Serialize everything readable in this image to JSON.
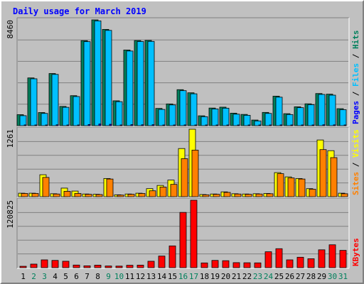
{
  "chart_data": {
    "type": "bar",
    "title": "Daily usage for March 2019",
    "categories": [
      "1",
      "2",
      "3",
      "4",
      "5",
      "6",
      "7",
      "8",
      "9",
      "10",
      "11",
      "12",
      "13",
      "14",
      "15",
      "16",
      "17",
      "18",
      "19",
      "20",
      "21",
      "22",
      "23",
      "24",
      "25",
      "26",
      "27",
      "28",
      "29",
      "30",
      "31"
    ],
    "weekend_days": [
      "2",
      "3",
      "9",
      "10",
      "16",
      "17",
      "23",
      "24",
      "30",
      "31"
    ],
    "panels": [
      {
        "id": "hits-files",
        "max_label": "8460",
        "ymax": 8460,
        "grid": true,
        "legend_right": [
          "Pages",
          "/",
          "Files",
          "/",
          "Hits"
        ],
        "series": [
          {
            "name": "Hits",
            "color": "#00805c",
            "values": [
              880,
              3820,
              1050,
              4170,
              1540,
              2400,
              6800,
              8460,
              7700,
              1990,
              6050,
              6810,
              6820,
              1380,
              1740,
              2880,
              2630,
              790,
              1410,
              1480,
              1000,
              900,
              450,
              1060,
              2360,
              960,
              1510,
              1750,
              2570,
              2520,
              1360
            ]
          },
          {
            "name": "Files",
            "color": "#00c0ff",
            "values": [
              800,
              3750,
              980,
              4100,
              1470,
              2330,
              6720,
              8380,
              7620,
              1920,
              5970,
              6730,
              6740,
              1300,
              1660,
              2800,
              2550,
              720,
              1340,
              1400,
              920,
              830,
              380,
              980,
              2280,
              890,
              1440,
              1680,
              2500,
              2440,
              1280
            ]
          },
          {
            "name": "Pages",
            "color": "#0000ff",
            "values": [
              60,
              40,
              50,
              70,
              45,
              40,
              90,
              130,
              110,
              50,
              80,
              70,
              75,
              40,
              50,
              60,
              55,
              30,
              40,
              45,
              35,
              30,
              20,
              35,
              60,
              30,
              40,
              45,
              70,
              65,
              40
            ]
          }
        ]
      },
      {
        "id": "visits-sites",
        "max_label": "1261",
        "ymax": 1261,
        "grid": true,
        "legend_right": [
          "Sites",
          "/",
          "Visits"
        ],
        "series": [
          {
            "name": "Visits",
            "color": "#ffff00",
            "values": [
              65,
              65,
              410,
              55,
              160,
              105,
              50,
              45,
              340,
              35,
              50,
              65,
              150,
              210,
              310,
              900,
              1261,
              40,
              50,
              90,
              55,
              50,
              55,
              60,
              450,
              370,
              340,
              150,
              1060,
              860,
              65
            ]
          },
          {
            "name": "Sites",
            "color": "#ff8000",
            "values": [
              60,
              60,
              360,
              50,
              100,
              60,
              45,
              40,
              330,
              30,
              45,
              60,
              110,
              180,
              230,
              710,
              870,
              35,
              45,
              80,
              50,
              45,
              50,
              55,
              430,
              350,
              330,
              140,
              880,
              730,
              55
            ]
          }
        ]
      },
      {
        "id": "kbytes",
        "max_label": "120825",
        "ymax": 120825,
        "grid": true,
        "legend_right": [
          "KBytes"
        ],
        "series": [
          {
            "name": "KBytes",
            "color": "#ff0000",
            "values": [
              2500,
              6400,
              14000,
              13000,
              11500,
              4700,
              3300,
              4500,
              3000,
              2800,
              4300,
              4500,
              11500,
              20800,
              39000,
              99000,
              120825,
              8500,
              13000,
              12500,
              9000,
              8800,
              8600,
              28500,
              34000,
              14000,
              18700,
              16000,
              32000,
              41000,
              31000
            ]
          }
        ]
      }
    ]
  }
}
